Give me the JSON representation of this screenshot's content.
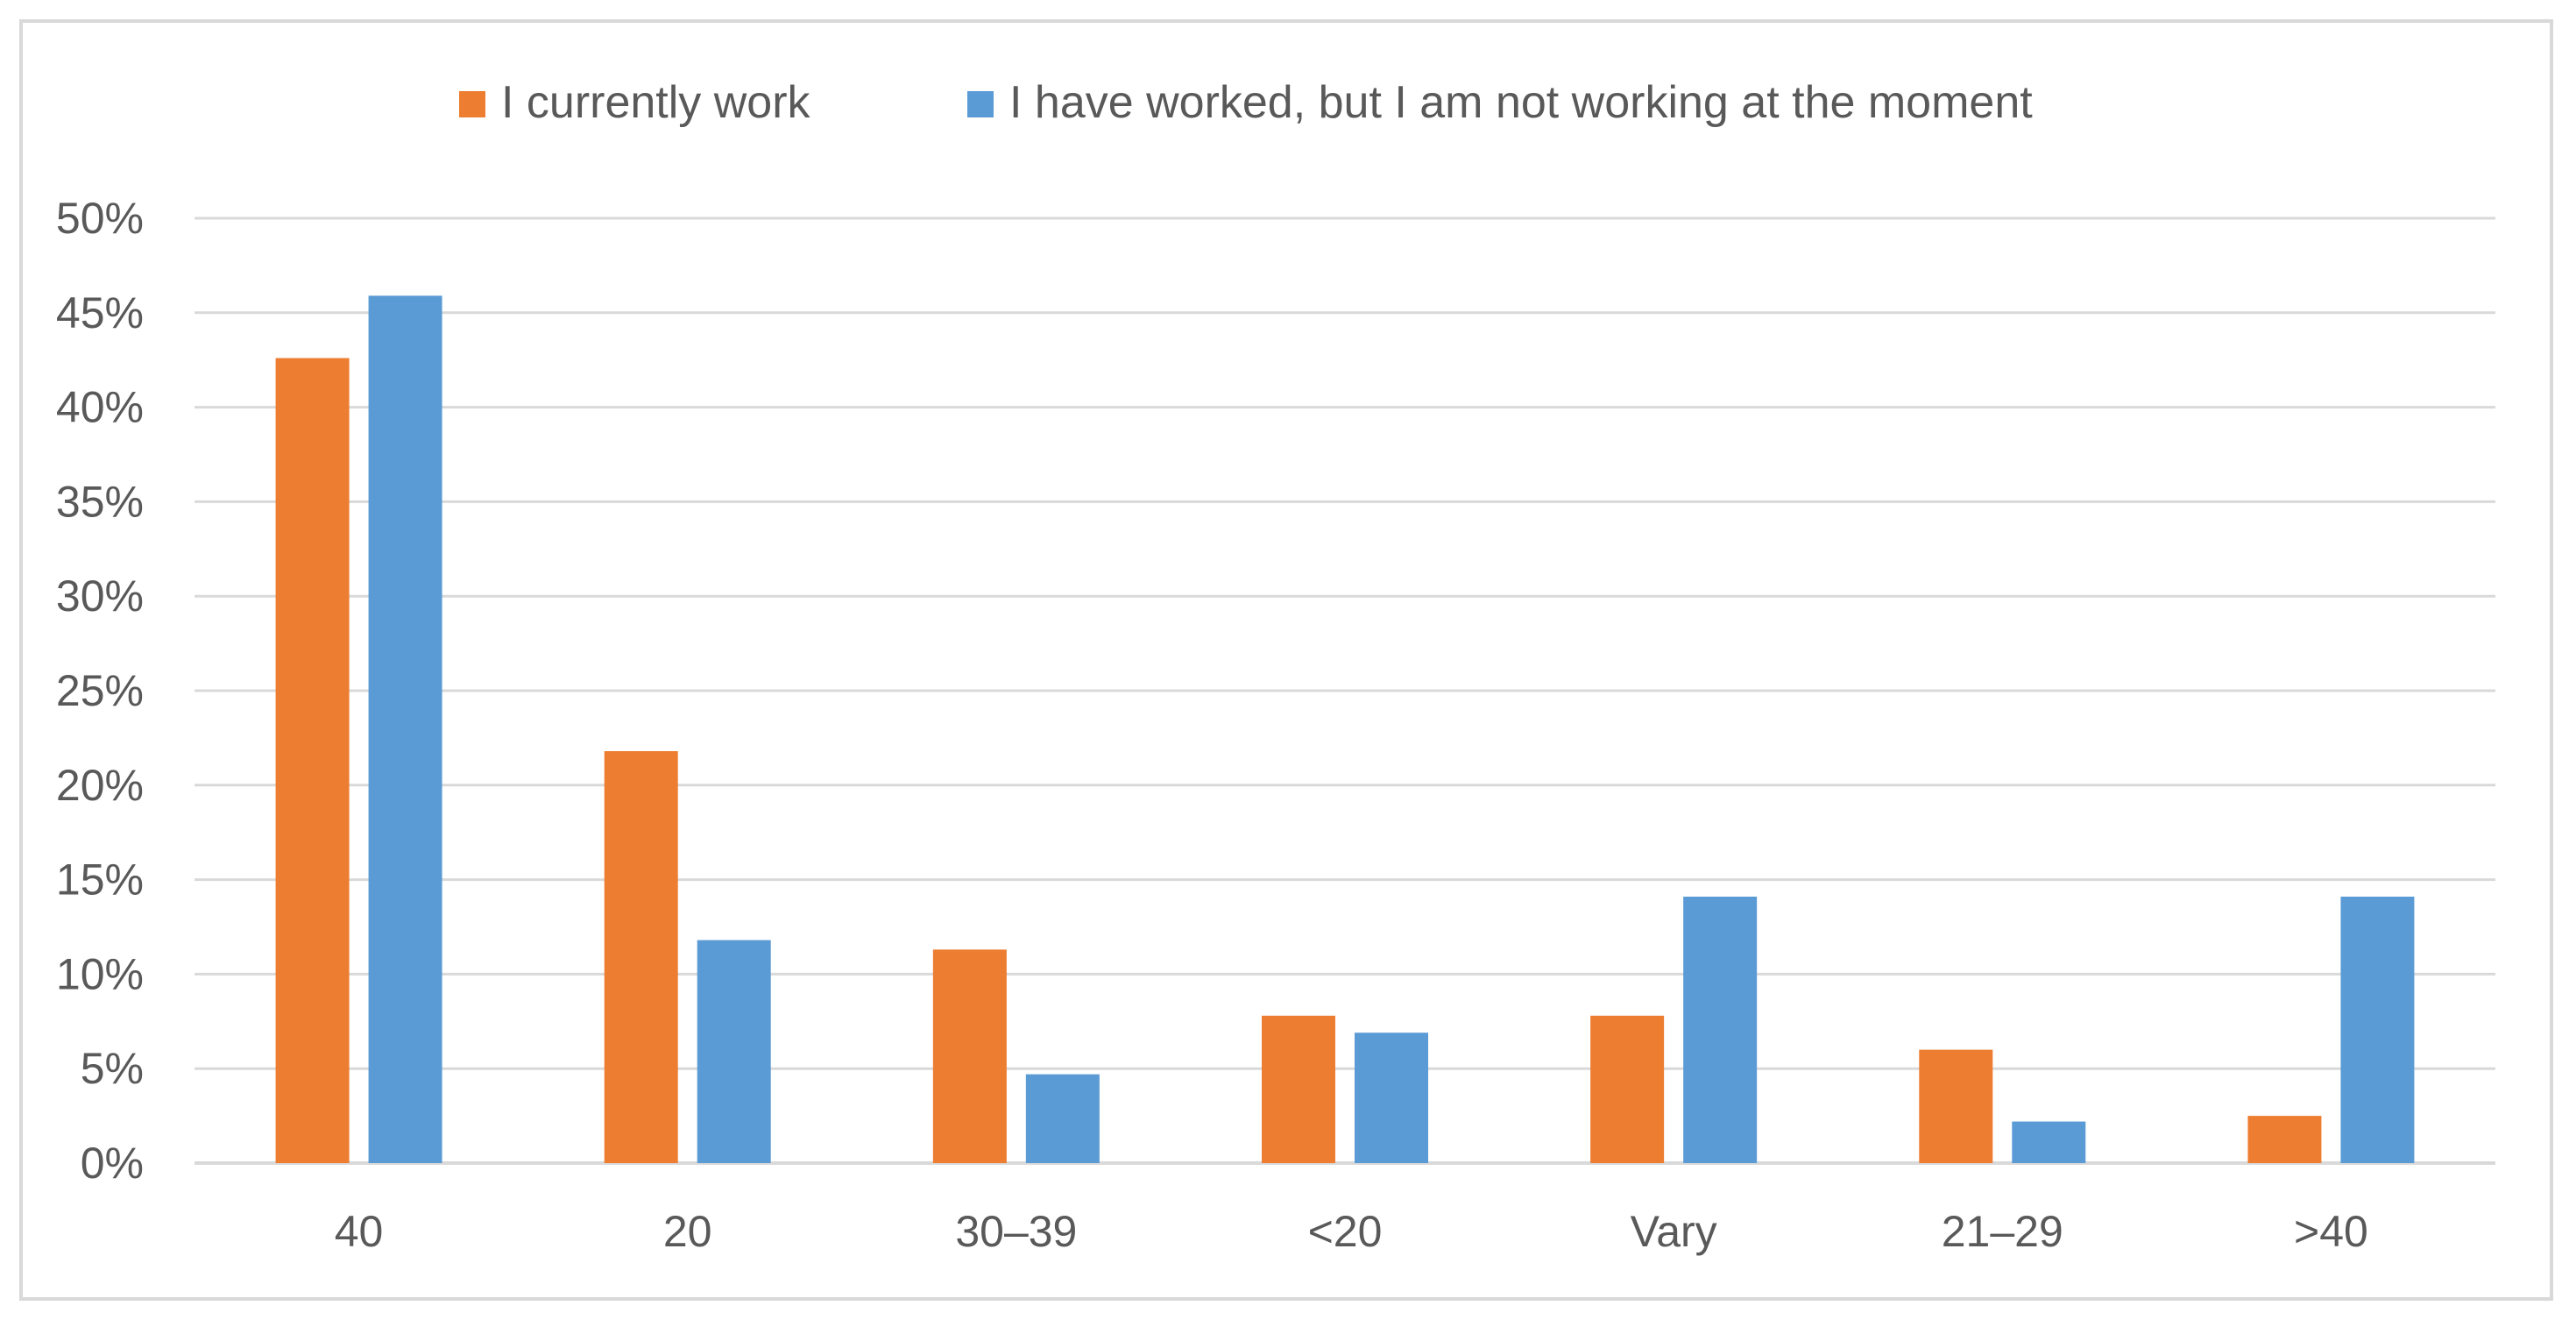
{
  "chart_data": {
    "type": "bar",
    "categories": [
      "40",
      "20",
      "30–39",
      "<20",
      "Vary",
      "21–29",
      ">40"
    ],
    "series": [
      {
        "name": "I currently work",
        "color": "#ED7D31",
        "values": [
          42.6,
          21.8,
          11.3,
          7.8,
          7.8,
          6.0,
          2.5
        ]
      },
      {
        "name": "I have worked, but I am not working at the moment",
        "color": "#5B9BD5",
        "values": [
          45.9,
          11.8,
          4.7,
          6.9,
          14.1,
          2.2,
          14.1
        ]
      }
    ],
    "yticks": [
      "0%",
      "5%",
      "10%",
      "15%",
      "20%",
      "25%",
      "30%",
      "35%",
      "40%",
      "45%",
      "50%"
    ],
    "ylim": [
      0,
      50
    ],
    "title": "",
    "xlabel": "",
    "ylabel": "",
    "grid": true,
    "legend_position": "top"
  }
}
